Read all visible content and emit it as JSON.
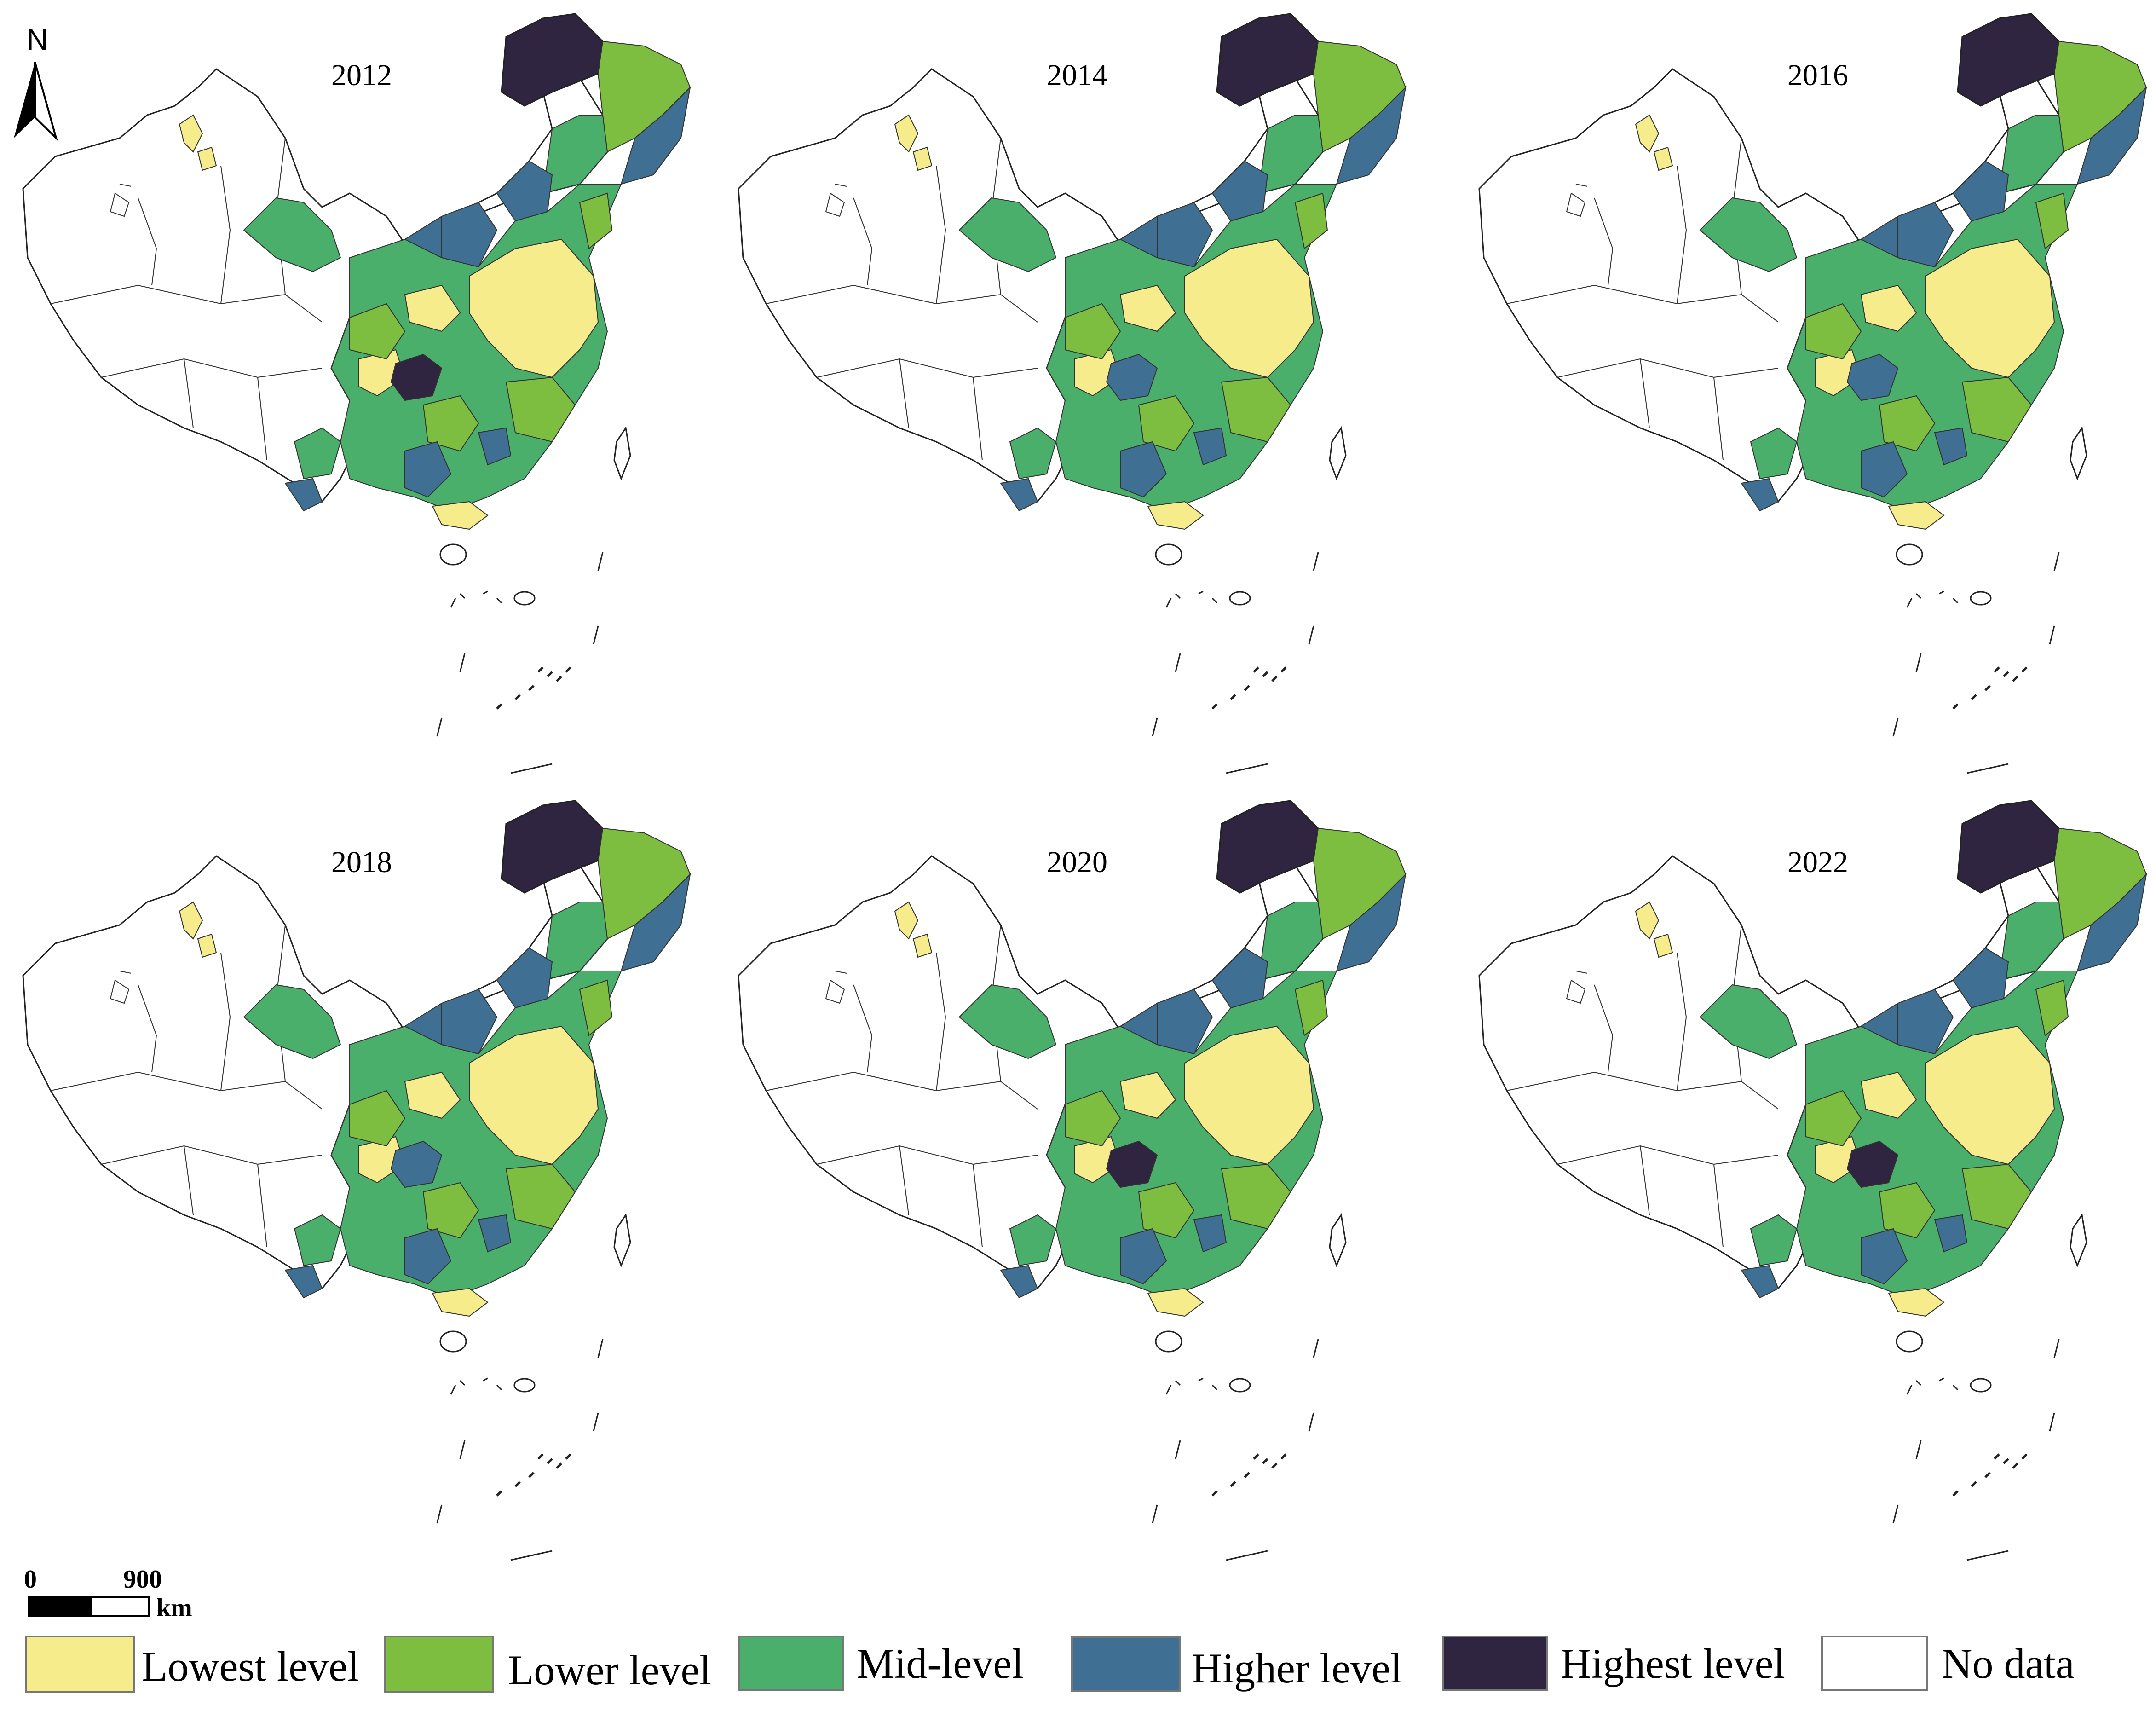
{
  "north_arrow": {
    "label": "N"
  },
  "panels": [
    {
      "year": "2012",
      "high_southwest": true,
      "hot_southwest": true
    },
    {
      "year": "2014",
      "high_southwest": true,
      "hot_southwest": false
    },
    {
      "year": "2016",
      "high_southwest": true,
      "hot_southwest": false
    },
    {
      "year": "2018",
      "high_southwest": true,
      "hot_southwest": false
    },
    {
      "year": "2020",
      "high_southwest": false,
      "hot_southwest": true
    },
    {
      "year": "2022",
      "high_southwest": false,
      "hot_southwest": true
    }
  ],
  "scale_bar": {
    "start": "0",
    "end": "900",
    "unit": "km"
  },
  "legend": [
    {
      "label": "Lowest level",
      "color": "#f6ec8c"
    },
    {
      "label": "Lower level",
      "color": "#7dbd3f"
    },
    {
      "label": "Mid-level",
      "color": "#4aaf6b"
    },
    {
      "label": "Higher level",
      "color": "#3f6f92"
    },
    {
      "label": "Highest level",
      "color": "#2f2540"
    },
    {
      "label": "No data",
      "color": "#ffffff"
    }
  ]
}
